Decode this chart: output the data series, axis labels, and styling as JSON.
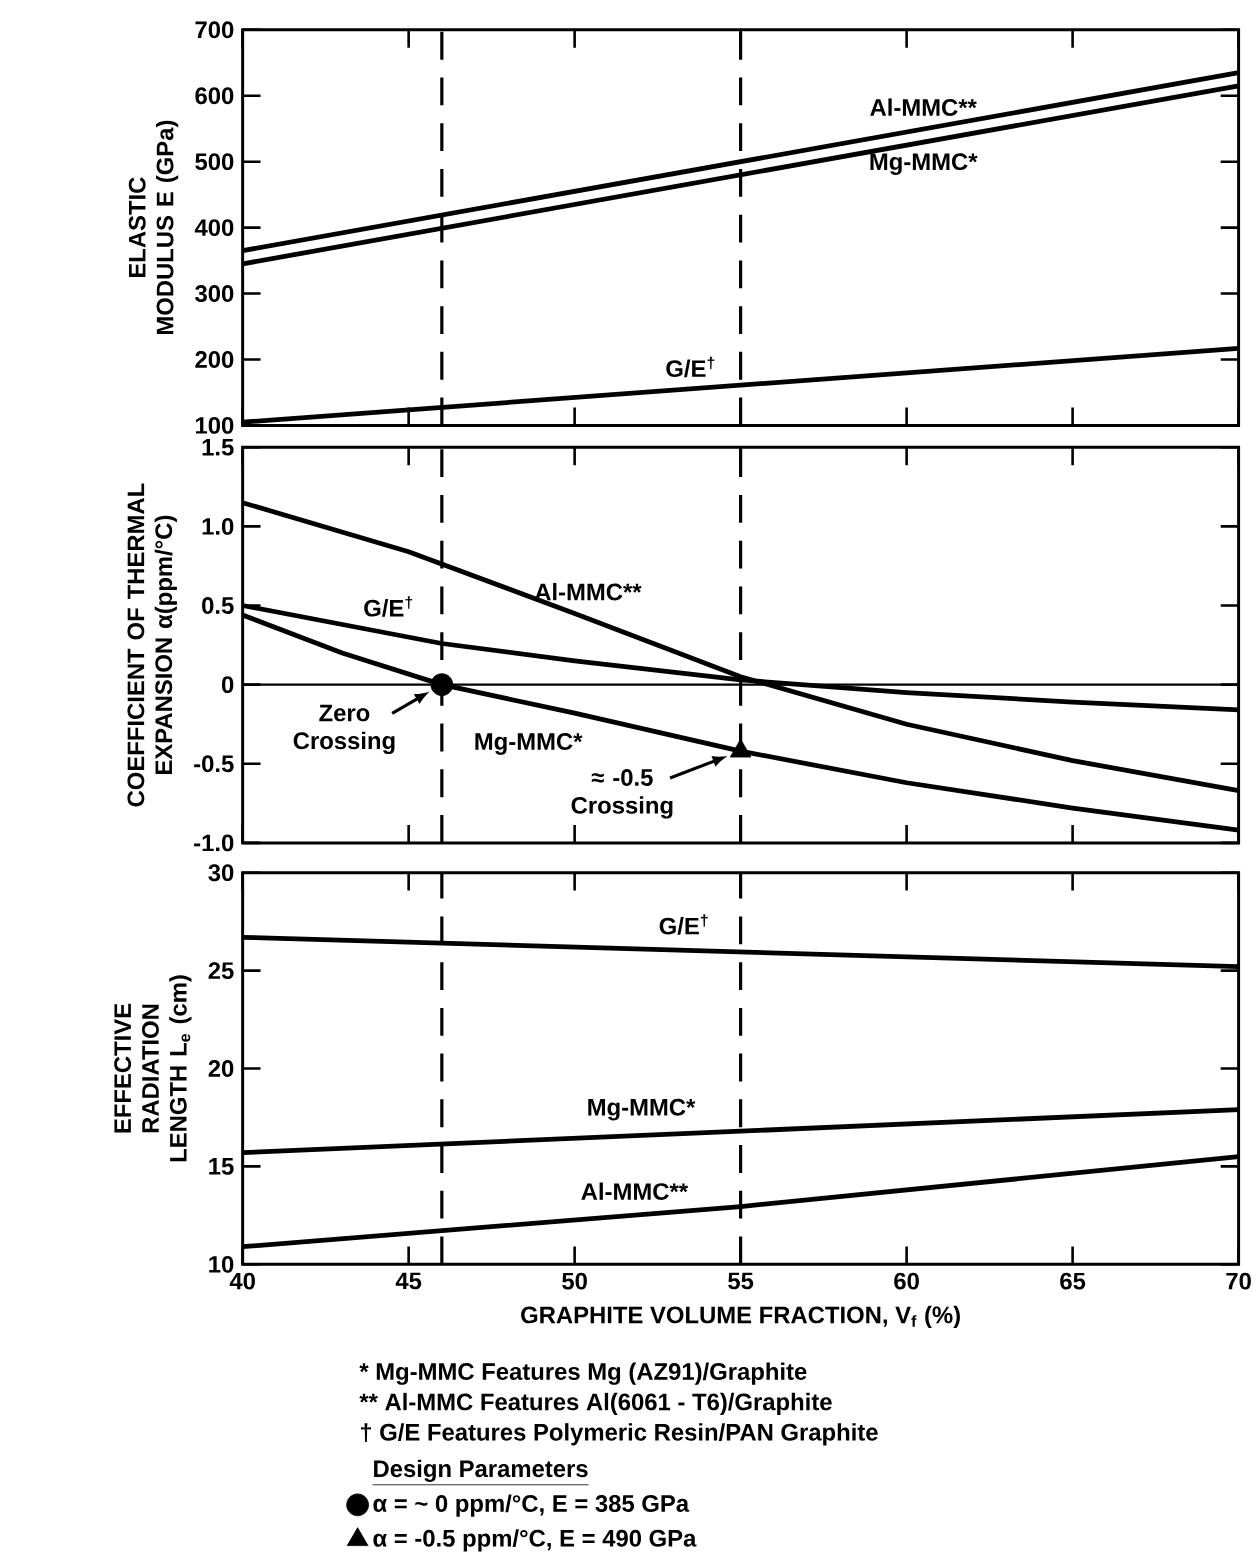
{
  "chart_data": [
    {
      "type": "line",
      "ylabel": "ELASTIC MODULUS E (GPa)",
      "xlim": [
        40,
        70
      ],
      "xticks": [
        40,
        45,
        50,
        55,
        60,
        65,
        70
      ],
      "ylim": [
        100,
        700
      ],
      "yticks": [
        100,
        200,
        300,
        400,
        500,
        600,
        700
      ],
      "tick_labels": "y",
      "series": [
        {
          "name": "Al-MMC**",
          "color": "#000000",
          "x": [
            40,
            70
          ],
          "values": [
            365,
            635
          ]
        },
        {
          "name": "Mg-MMC*",
          "color": "#000000",
          "x": [
            40,
            70
          ],
          "values": [
            345,
            615
          ]
        },
        {
          "name": "G/E$^{†}$",
          "color": "#000000",
          "x": [
            40,
            70
          ],
          "values": [
            105,
            217
          ]
        }
      ],
      "ref_lines": [
        {
          "axis": "x",
          "value": 46,
          "line_style": "dashed"
        },
        {
          "axis": "x",
          "value": 55,
          "line_style": "dashed"
        }
      ]
    },
    {
      "type": "line",
      "ylabel": "COEFFICIENT OF THERMAL EXPANSION α(ppm/°C)",
      "xlim": [
        40,
        70
      ],
      "xticks": [
        40,
        45,
        50,
        55,
        60,
        65,
        70
      ],
      "ylim": [
        -1,
        1.5
      ],
      "yticks": [
        {
          "value": -1,
          "label": "-1.0"
        },
        -0.5,
        0,
        0.5,
        {
          "value": 1,
          "label": "1.0"
        },
        1.5
      ],
      "tick_labels": "y",
      "legend": "bottom",
      "legend_title": "Design Parameters",
      "series": [
        {
          "name": "Al-MMC**",
          "color": "#000000",
          "x": [
            40,
            45,
            50,
            55,
            60,
            65,
            70
          ],
          "values": [
            1.15,
            0.84,
            0.45,
            0.05,
            -0.25,
            -0.48,
            -0.67
          ]
        },
        {
          "name": "G/E$^{†}$",
          "color": "#000000",
          "x": [
            40,
            46,
            50,
            55,
            60,
            65,
            70
          ],
          "values": [
            0.5,
            0.26,
            0.15,
            0.03,
            -0.05,
            -0.11,
            -0.16
          ]
        },
        {
          "name": "Mg-MMC*",
          "color": "#000000",
          "x": [
            40,
            43,
            46,
            50,
            55,
            60,
            65,
            70
          ],
          "values": [
            0.44,
            0.2,
            0,
            -0.18,
            -0.42,
            -0.62,
            -0.78,
            -0.92
          ]
        },
        {
          "type": "scatter",
          "name": "α = ~ 0 ppm/°C, E = 385 GPa",
          "color": "#000000",
          "marker": "circle",
          "x": [
            46
          ],
          "values": [
            0
          ]
        },
        {
          "type": "scatter",
          "name": "α = -0.5 ppm/°C, E = 490 GPa",
          "color": "#000000",
          "marker": "triangle",
          "x": [
            55
          ],
          "values": [
            -0.42
          ]
        }
      ],
      "annotations": [
        {
          "text": "Zero Crossing",
          "x": 46,
          "y": 0
        },
        {
          "text": "≈ -0.5 Crossing",
          "x": 55,
          "y": -0.42
        }
      ],
      "ref_lines": [
        {
          "axis": "x",
          "value": 46,
          "line_style": "dashed"
        },
        {
          "axis": "x",
          "value": 55,
          "line_style": "dashed"
        },
        {
          "axis": "y",
          "value": 0,
          "line_style": "solid"
        }
      ]
    },
    {
      "type": "line",
      "ylabel": "EFFECTIVE RADIATION LENGTH L$_{e}$ (cm)",
      "xlabel": "GRAPHITE VOLUME FRACTION, V$_{f}$ (%)",
      "xlim": [
        40,
        70
      ],
      "xticks": [
        40,
        45,
        50,
        55,
        60,
        65,
        70
      ],
      "ylim": [
        10,
        30
      ],
      "yticks": [
        10,
        15,
        20,
        25,
        30
      ],
      "series": [
        {
          "name": "G/E$^{†}$",
          "color": "#000000",
          "x": [
            40,
            70
          ],
          "values": [
            26.7,
            25.2
          ]
        },
        {
          "name": "Mg-MMC*",
          "color": "#000000",
          "x": [
            40,
            70
          ],
          "values": [
            15.7,
            17.9
          ]
        },
        {
          "name": "Al-MMC**",
          "color": "#000000",
          "x": [
            40,
            55,
            70
          ],
          "values": [
            10.9,
            12.95,
            15.5
          ]
        }
      ],
      "annotations": [
        "* Mg-MMC Features Mg (AZ91)/Graphite",
        "** Al-MMC Features Al(6061 - T6)/Graphite",
        "† G/E Features Polymeric Resin/PAN Graphite"
      ],
      "ref_lines": [
        {
          "axis": "x",
          "value": 46,
          "line_style": "dashed"
        },
        {
          "axis": "x",
          "value": 55,
          "line_style": "dashed"
        }
      ]
    }
  ]
}
